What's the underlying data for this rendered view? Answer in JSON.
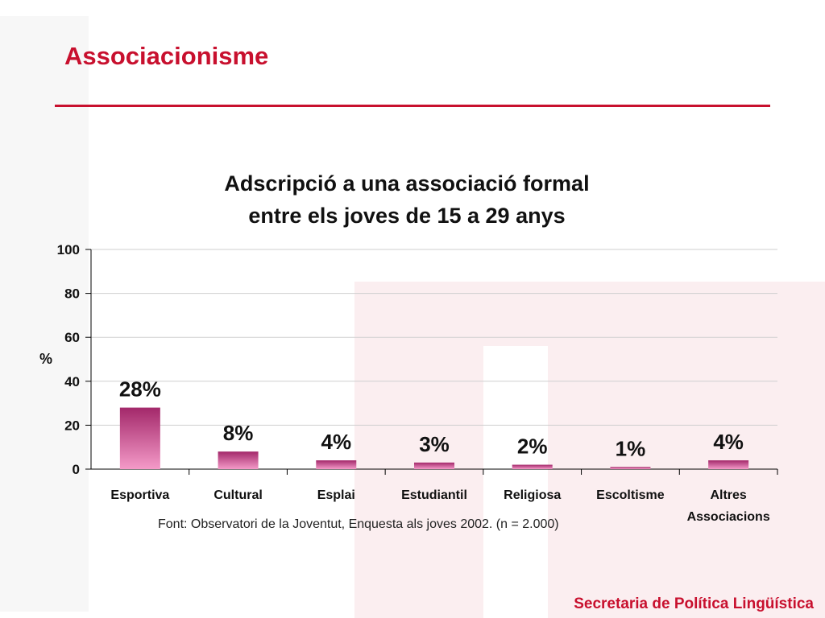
{
  "slide": {
    "title": "Associacionisme",
    "source": "Font: Observatori de la Joventut, Enquesta als joves 2002. (n = 2.000)",
    "footer": "Secretaria de Política Lingüística"
  },
  "colors": {
    "accent": "#c8102e",
    "bar_top": "#a3286a",
    "bar_bottom": "#f49ac8",
    "gridline": "#cfcfcf"
  },
  "chart_data": {
    "type": "bar",
    "title_lines": [
      "Adscripció a una associació formal",
      "entre els joves de 15 a 29 anys"
    ],
    "ylabel": "%",
    "xlabel": "",
    "ylim": [
      0,
      100
    ],
    "yticks": [
      "0",
      "20",
      "40",
      "60",
      "80",
      "100"
    ],
    "categories": [
      [
        "Esportiva"
      ],
      [
        "Cultural"
      ],
      [
        "Esplai"
      ],
      [
        "Estudiantil"
      ],
      [
        "Religiosa"
      ],
      [
        "Escoltisme"
      ],
      [
        "Altres",
        "Associacions"
      ]
    ],
    "values": [
      28,
      8,
      4,
      3,
      2,
      1,
      4
    ],
    "data_labels": [
      "28%",
      "8%",
      "4%",
      "3%",
      "2%",
      "1%",
      "4%"
    ],
    "grid": true,
    "legend": "none"
  }
}
